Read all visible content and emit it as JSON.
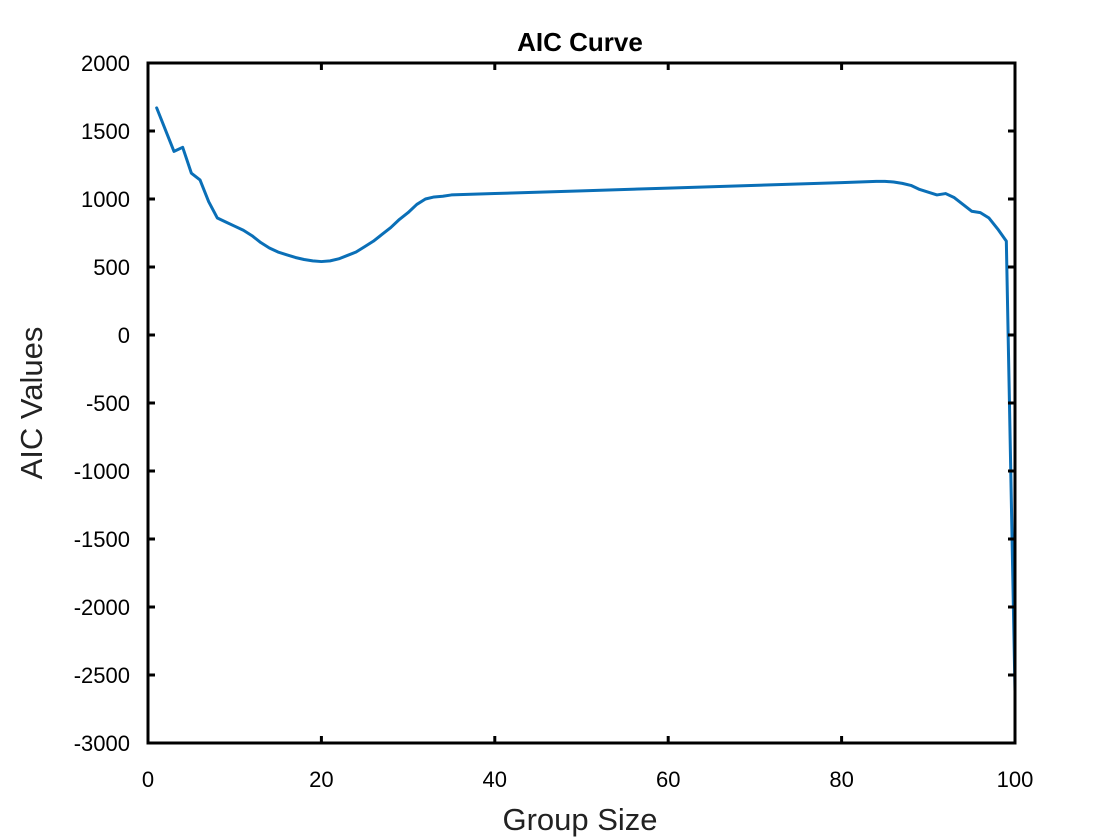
{
  "chart_data": {
    "type": "line",
    "title": "AIC Curve",
    "xlabel": "Group Size",
    "ylabel": "AIC Values",
    "xlim": [
      0,
      100
    ],
    "ylim": [
      -3000,
      2000
    ],
    "xticks": [
      0,
      20,
      40,
      60,
      80,
      100
    ],
    "yticks": [
      -3000,
      -2500,
      -2000,
      -1500,
      -1000,
      -500,
      0,
      500,
      1000,
      1500,
      2000
    ],
    "grid": false,
    "box": true,
    "series": [
      {
        "color": "#0a6fb7",
        "x": [
          1,
          2,
          3,
          4,
          5,
          6,
          7,
          8,
          9,
          10,
          11,
          12,
          13,
          14,
          15,
          16,
          17,
          18,
          19,
          20,
          21,
          22,
          23,
          24,
          25,
          26,
          27,
          28,
          29,
          30,
          31,
          32,
          33,
          34,
          35,
          40,
          50,
          60,
          70,
          80,
          84,
          85,
          86,
          87,
          88,
          89,
          90,
          91,
          92,
          93,
          94,
          95,
          96,
          97,
          98,
          99,
          100
        ],
        "y": [
          1670,
          1510,
          1350,
          1380,
          1190,
          1140,
          980,
          860,
          830,
          800,
          770,
          730,
          680,
          640,
          610,
          590,
          570,
          555,
          545,
          540,
          545,
          560,
          585,
          610,
          650,
          690,
          740,
          790,
          850,
          900,
          960,
          1000,
          1015,
          1020,
          1030,
          1040,
          1060,
          1080,
          1100,
          1120,
          1130,
          1130,
          1125,
          1115,
          1100,
          1070,
          1050,
          1030,
          1040,
          1010,
          960,
          910,
          900,
          860,
          780,
          690,
          -2620
        ]
      }
    ]
  }
}
